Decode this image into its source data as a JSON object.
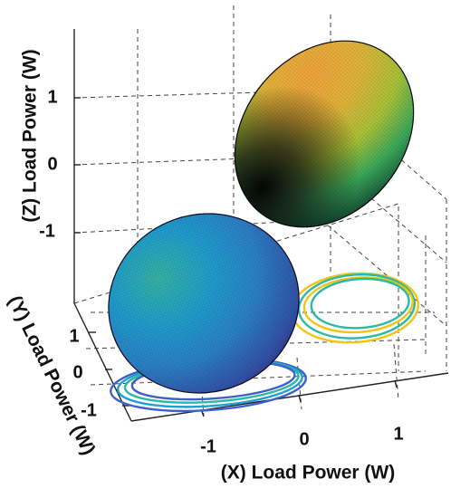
{
  "chart_data": {
    "type": "surface3d",
    "title": "",
    "xlabel": "(X) Load Power (W)",
    "ylabel": "(Y) Load Power (W)",
    "zlabel": "(Z) Load Power (W)",
    "x_ticks": [
      "-1",
      "0",
      "1"
    ],
    "y_ticks": [
      "1",
      "0",
      "-1"
    ],
    "z_ticks": [
      "1",
      "0",
      "-1"
    ],
    "grid": true,
    "surfaces": [
      {
        "name": "",
        "shape": "ellipsoid",
        "center": [
          0.4,
          0.9,
          0.6
        ],
        "colormap": [
          "#0b0b10",
          "#1d8f5a",
          "#6cc24a",
          "#e0b735",
          "#f0a020"
        ]
      },
      {
        "name": "",
        "shape": "ellipsoid",
        "center": [
          -0.5,
          -0.2,
          -1.9
        ],
        "colormap": [
          "#2a186b",
          "#2563b0",
          "#1f97c9",
          "#2ab7a0",
          "#5fc873"
        ]
      }
    ],
    "projections": [
      {
        "plane": "floor",
        "of_surface": 1,
        "colors": [
          "#f2c414",
          "#2bb9a3",
          "#f2c414",
          "#2bb9a3"
        ]
      },
      {
        "plane": "floor",
        "of_surface": 2,
        "colors": [
          "#3f5fcc",
          "#1f9fd0",
          "#2bb9a3",
          "#3f5fcc"
        ]
      }
    ]
  }
}
